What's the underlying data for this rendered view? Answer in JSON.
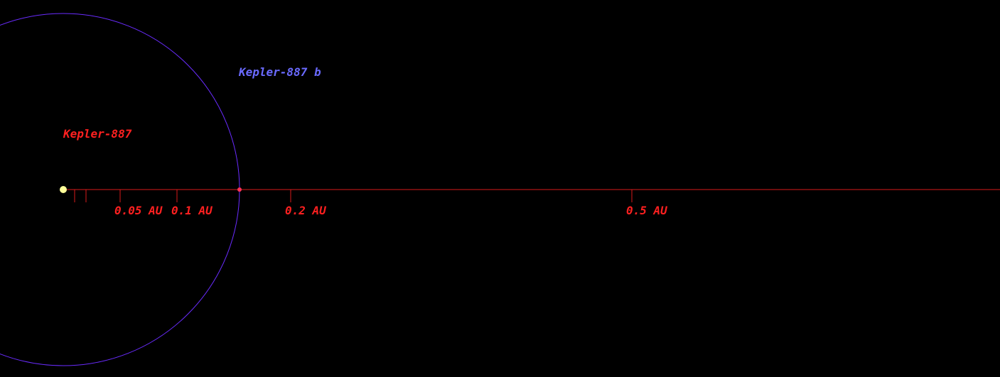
{
  "colors": {
    "background": "#000000",
    "axis": "#d81a1a",
    "orbit": "#6a2cff",
    "planet_label": "#6a6aff",
    "star_label": "#ff2020",
    "star_fill": "#ffff99",
    "planet_dot": "#ff3355"
  },
  "star": {
    "name": "Kepler-887"
  },
  "planet": {
    "name": "Kepler-887 b",
    "semi_major_axis_au": 0.155
  },
  "scale": {
    "unit": "AU",
    "ticks": [
      {
        "value": 0.01,
        "label": ""
      },
      {
        "value": 0.02,
        "label": ""
      },
      {
        "value": 0.05,
        "label": "0.05 AU"
      },
      {
        "value": 0.1,
        "label": "0.1 AU"
      },
      {
        "value": 0.2,
        "label": "0.2 AU"
      },
      {
        "value": 0.5,
        "label": "0.5 AU"
      }
    ]
  }
}
